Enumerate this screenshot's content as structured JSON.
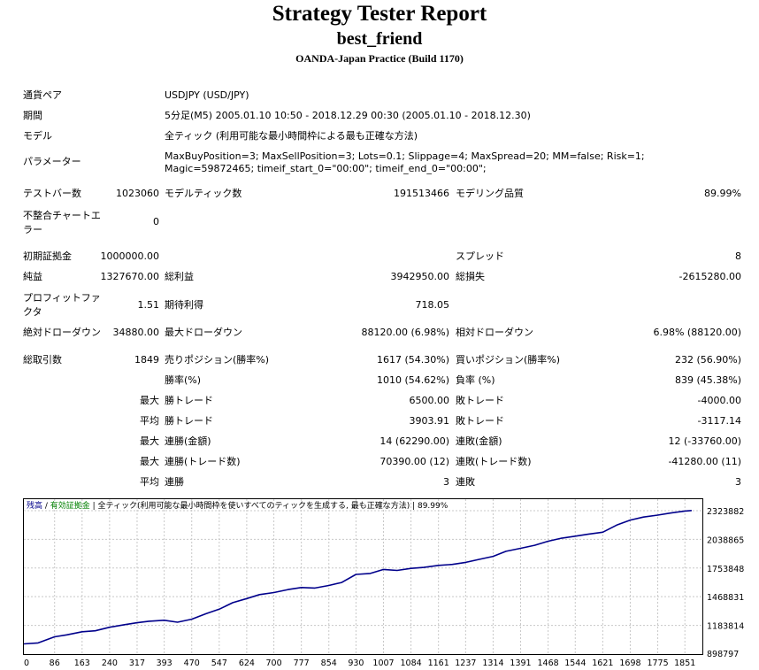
{
  "header": {
    "title": "Strategy Tester Report",
    "expert_name": "best_friend",
    "server": "OANDA-Japan Practice (Build 1170)"
  },
  "settings": [
    {
      "label": "通貨ペア",
      "value": "USDJPY (USD/JPY)"
    },
    {
      "label": "期間",
      "value": "5分足(M5) 2005.01.10 10:50 - 2018.12.29 00:30 (2005.01.10 - 2018.12.30)"
    },
    {
      "label": "モデル",
      "value": "全ティック (利用可能な最小時間枠による最も正確な方法)"
    },
    {
      "label": "パラメーター",
      "value": "MaxBuyPosition=3; MaxSellPosition=3; Lots=0.1; Slippage=4; MaxSpread=20; MM=false; Risk=1; Magic=59872465; timeif_start_0=\"00:00\"; timeif_end_0=\"00:00\";"
    }
  ],
  "stats": {
    "bars_label": "テストバー数",
    "bars_value": "1023060",
    "ticks_label": "モデルティック数",
    "ticks_value": "191513466",
    "quality_label": "モデリング品質",
    "quality_value": "89.99%",
    "mismatch_label": "不整合チャートエラー",
    "mismatch_value": "0",
    "deposit_label": "初期証拠金",
    "deposit_value": "1000000.00",
    "spread_label": "スプレッド",
    "spread_value": "8",
    "net_label": "純益",
    "net_value": "1327670.00",
    "gross_profit_label": "総利益",
    "gross_profit_value": "3942950.00",
    "gross_loss_label": "総損失",
    "gross_loss_value": "-2615280.00",
    "pf_label": "プロフィットファクタ",
    "pf_value": "1.51",
    "payoff_label": "期待利得",
    "payoff_value": "718.05",
    "abs_dd_label": "絶対ドローダウン",
    "abs_dd_value": "34880.00",
    "max_dd_label": "最大ドローダウン",
    "max_dd_value": "88120.00 (6.98%)",
    "rel_dd_label": "相対ドローダウン",
    "rel_dd_value": "6.98% (88120.00)",
    "total_trades_label": "総取引数",
    "total_trades_value": "1849",
    "short_label": "売りポジション(勝率%)",
    "short_value": "1617 (54.30%)",
    "long_label": "買いポジション(勝率%)",
    "long_value": "232 (56.90%)",
    "win_label": "勝率(%)",
    "win_value": "1010 (54.62%)",
    "loss_label": "負率 (%)",
    "loss_value": "839 (45.38%)",
    "max_word": "最大",
    "avg_word": "平均",
    "largest_win_label": "勝トレード",
    "largest_win_value": "6500.00",
    "largest_loss_label": "敗トレード",
    "largest_loss_value": "-4000.00",
    "avg_win_label": "勝トレード",
    "avg_win_value": "3903.91",
    "avg_loss_label": "敗トレード",
    "avg_loss_value": "-3117.14",
    "consec_wins_label": "連勝(金額)",
    "consec_wins_value": "14 (62290.00)",
    "consec_losses_label": "連敗(金額)",
    "consec_losses_value": "12 (-33760.00)",
    "consec_profit_label": "連勝(トレード数)",
    "consec_profit_value": "70390.00 (12)",
    "consec_loss_label": "連敗(トレード数)",
    "consec_loss_value": "-41280.00 (11)",
    "avg_consec_wins_label": "連勝",
    "avg_consec_wins_value": "3",
    "avg_consec_losses_label": "連敗",
    "avg_consec_losses_value": "3"
  },
  "chart_data": {
    "type": "line",
    "legend": {
      "balance": "残高",
      "separator": " / ",
      "equity": "有効証拠金",
      "model": "全ティック(利用可能な最小時間枠を使いすべてのティックを生成する, 最も正確な方法)",
      "quality": "89.99%"
    },
    "x_ticks": [
      "0",
      "86",
      "163",
      "240",
      "317",
      "393",
      "470",
      "547",
      "624",
      "700",
      "777",
      "854",
      "930",
      "1007",
      "1084",
      "1161",
      "1237",
      "1314",
      "1391",
      "1468",
      "1544",
      "1621",
      "1698",
      "1775",
      "1851"
    ],
    "y_ticks": [
      "2323882",
      "2038865",
      "1753848",
      "1468831",
      "1183814",
      "898797"
    ],
    "xlim": [
      0,
      1900
    ],
    "ylim": [
      898797,
      2437889
    ],
    "colors": {
      "balance": "#00008b",
      "grid": "#c8c8c8",
      "border": "#000000",
      "legend_balance": "#00008b",
      "legend_equity": "#008000"
    },
    "series": [
      {
        "name": "残高",
        "x": [
          0,
          40,
          86,
          120,
          163,
          200,
          240,
          280,
          317,
          350,
          393,
          430,
          470,
          510,
          547,
          585,
          624,
          660,
          700,
          740,
          777,
          815,
          854,
          890,
          930,
          970,
          1007,
          1045,
          1084,
          1120,
          1161,
          1200,
          1237,
          1275,
          1314,
          1350,
          1391,
          1430,
          1468,
          1505,
          1544,
          1580,
          1621,
          1660,
          1698,
          1735,
          1775,
          1810,
          1851,
          1870
        ],
        "y": [
          1000000,
          1010000,
          1070000,
          1090000,
          1120000,
          1130000,
          1165000,
          1190000,
          1210000,
          1225000,
          1235000,
          1215000,
          1245000,
          1300000,
          1345000,
          1410000,
          1450000,
          1490000,
          1510000,
          1540000,
          1560000,
          1555000,
          1580000,
          1610000,
          1690000,
          1700000,
          1740000,
          1730000,
          1750000,
          1760000,
          1780000,
          1790000,
          1810000,
          1840000,
          1870000,
          1920000,
          1950000,
          1980000,
          2020000,
          2050000,
          2070000,
          2090000,
          2110000,
          2180000,
          2230000,
          2260000,
          2280000,
          2300000,
          2320000,
          2325000
        ]
      }
    ]
  }
}
